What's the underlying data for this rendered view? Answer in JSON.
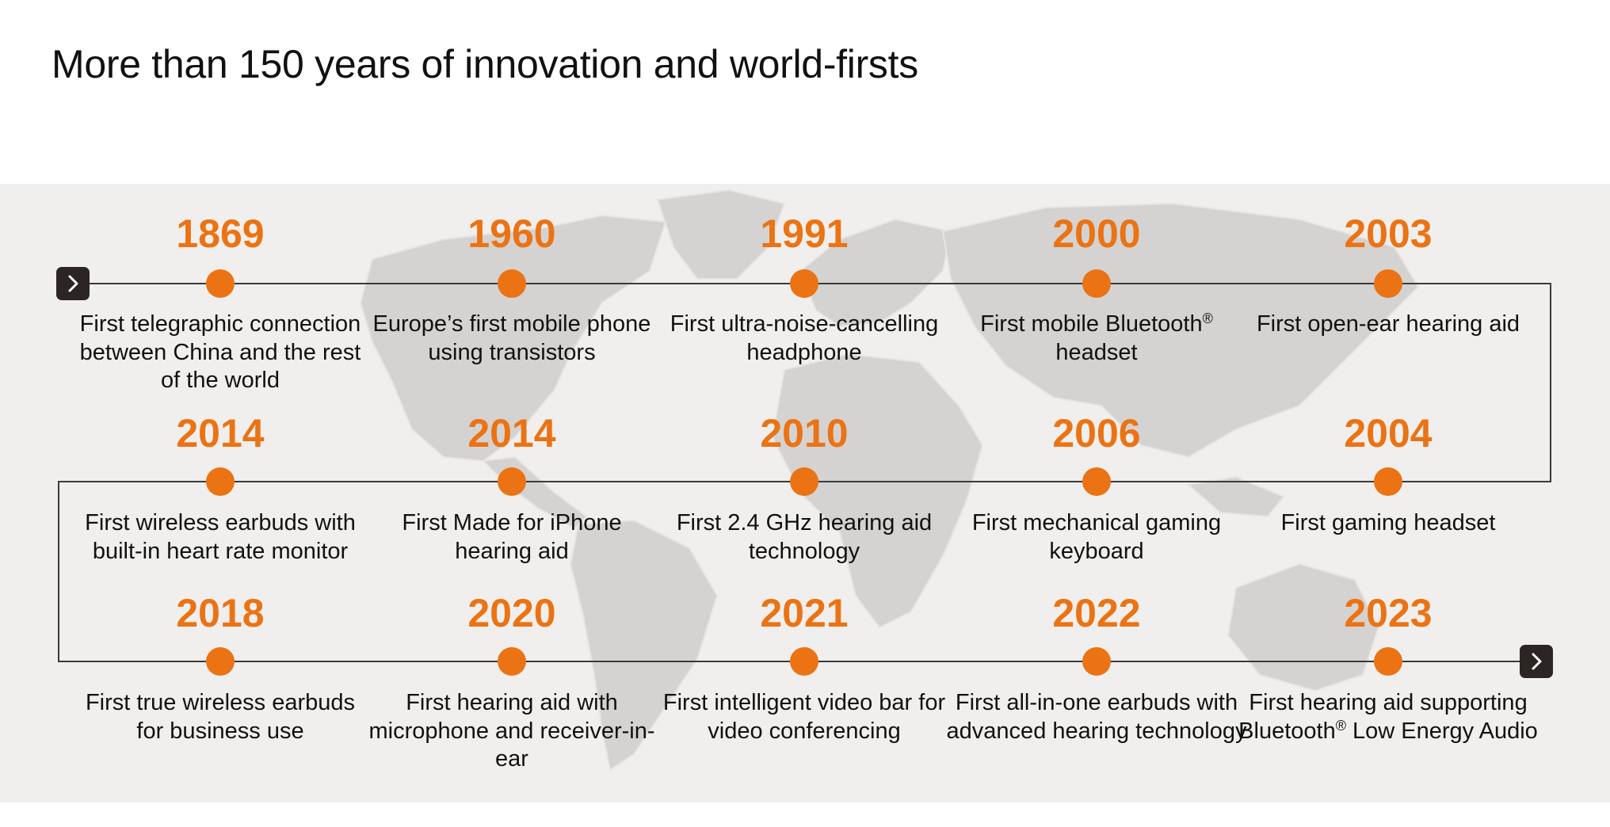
{
  "title": "More than 150 years of innovation and world-firsts",
  "colors": {
    "accent": "#eb7314",
    "line": "#3a3a3a",
    "background": "#f0efed",
    "arrow": "#2b2623"
  },
  "icons": {
    "start": "chevron-right-icon",
    "end": "chevron-right-icon"
  },
  "timeline": {
    "rows": [
      {
        "milestones": [
          {
            "year": "1869",
            "description": "First telegraphic connection between China and the rest of the world"
          },
          {
            "year": "1960",
            "description": "Europe’s first mobile phone using transistors"
          },
          {
            "year": "1991",
            "description": "First ultra-noise-cancelling headphone"
          },
          {
            "year": "2000",
            "description": "First mobile Bluetooth® headset"
          },
          {
            "year": "2003",
            "description": "First open-ear hearing aid"
          }
        ]
      },
      {
        "milestones": [
          {
            "year": "2014",
            "description": "First wireless earbuds with built-in heart rate monitor"
          },
          {
            "year": "2014",
            "description": "First Made for iPhone hearing aid"
          },
          {
            "year": "2010",
            "description": "First 2.4 GHz hearing aid technology"
          },
          {
            "year": "2006",
            "description": "First mechanical gaming keyboard"
          },
          {
            "year": "2004",
            "description": "First gaming headset"
          }
        ]
      },
      {
        "milestones": [
          {
            "year": "2018",
            "description": "First true wireless earbuds for business use"
          },
          {
            "year": "2020",
            "description": "First hearing aid with microphone and receiver-in-ear"
          },
          {
            "year": "2021",
            "description": "First intelligent video bar for video conferencing"
          },
          {
            "year": "2022",
            "description": "First all-in-one earbuds with advanced hearing technology"
          },
          {
            "year": "2023",
            "description": "First hearing aid supporting Bluetooth® Low Energy Audio"
          }
        ]
      }
    ]
  }
}
